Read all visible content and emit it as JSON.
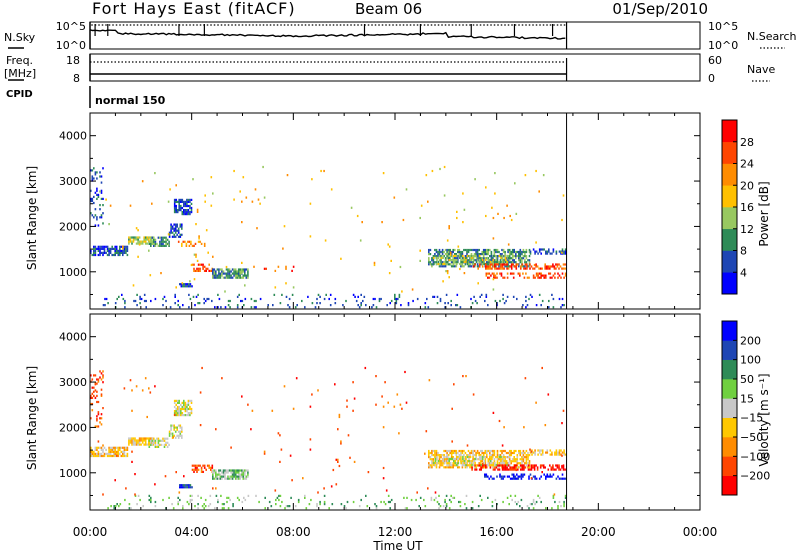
{
  "header": {
    "site": "Fort Hays East (fitACF)",
    "beam": "Beam 06",
    "date": "01/Sep/2010"
  },
  "noise_panel": {
    "left_label": "N.Sky",
    "left_ticks": [
      "10^5",
      "10^0"
    ],
    "right_label": "N.Search",
    "right_ticks": [
      "10^5",
      "10^0"
    ]
  },
  "freq_panel": {
    "left_label_line1": "Freq.",
    "left_label_line2": "[MHz]",
    "left_ticks": [
      "18",
      "8"
    ],
    "right_label": "Nave",
    "right_ticks": [
      "60",
      "0"
    ]
  },
  "cpid_panel": {
    "label": "CPID",
    "mode": "normal 150"
  },
  "time_axis": {
    "label": "Time UT",
    "ticks": [
      "00:00",
      "04:00",
      "08:00",
      "12:00",
      "16:00",
      "20:00",
      "00:00"
    ],
    "data_end_hour": 18.75
  },
  "colors": {
    "power_scale": [
      "#0000ff",
      "#1e46b4",
      "#2e8b57",
      "#98c860",
      "#ffc000",
      "#ff8c00",
      "#ff4500",
      "#ff0000"
    ],
    "velocity_scale": [
      "#ff0000",
      "#ff4500",
      "#ff8c00",
      "#ffc800",
      "#c8c8c8",
      "#70d040",
      "#2e8b57",
      "#1e46b4",
      "#0000ff"
    ]
  },
  "chart_data": [
    {
      "type": "heatmap",
      "name": "power",
      "ylabel": "Slant Range [km]",
      "xlabel": "",
      "ylim": [
        180,
        4500
      ],
      "yticks": [
        "1000",
        "2000",
        "3000",
        "4000"
      ],
      "ytick_values": [
        1000,
        2000,
        3000,
        4000
      ],
      "colorbar": {
        "label": "Power [dB]",
        "range": [
          0,
          32
        ],
        "ticks": [
          "4",
          "8",
          "12",
          "16",
          "20",
          "24",
          "28"
        ]
      },
      "regions": [
        {
          "t0": 0.0,
          "t1": 0.5,
          "r0": 2000,
          "r1": 3300,
          "level": 1,
          "density": 0.25
        },
        {
          "t0": 0.0,
          "t1": 1.5,
          "r0": 1350,
          "r1": 1550,
          "level": 1,
          "density": 0.7
        },
        {
          "t0": 1.5,
          "t1": 2.5,
          "r0": 1600,
          "r1": 1750,
          "level": 3,
          "density": 0.8
        },
        {
          "t0": 2.3,
          "t1": 3.1,
          "r0": 1550,
          "r1": 1750,
          "level": 2,
          "density": 0.6
        },
        {
          "t0": 3.1,
          "t1": 3.6,
          "r0": 1750,
          "r1": 2050,
          "level": 1,
          "density": 0.5
        },
        {
          "t0": 3.3,
          "t1": 4.0,
          "r0": 2250,
          "r1": 2600,
          "level": 1,
          "density": 0.7
        },
        {
          "t0": 3.4,
          "t1": 4.6,
          "r0": 1550,
          "r1": 1650,
          "level": 5,
          "density": 0.3
        },
        {
          "t0": 3.5,
          "t1": 4.0,
          "r0": 660,
          "r1": 720,
          "level": 1,
          "density": 0.9
        },
        {
          "t0": 4.0,
          "t1": 4.8,
          "r0": 1000,
          "r1": 1150,
          "level": 6,
          "density": 0.5
        },
        {
          "t0": 4.8,
          "t1": 6.2,
          "r0": 850,
          "r1": 1050,
          "level": 2,
          "density": 0.8
        },
        {
          "t0": 6.0,
          "t1": 8.0,
          "r0": 1000,
          "r1": 1100,
          "level": 6,
          "density": 0.12
        },
        {
          "t0": 0.5,
          "t1": 18.7,
          "r0": 200,
          "r1": 500,
          "level": 1,
          "density": 0.1
        },
        {
          "t0": 13.3,
          "t1": 17.3,
          "r0": 1100,
          "r1": 1500,
          "level": 2,
          "density": 0.65
        },
        {
          "t0": 13.5,
          "t1": 16.5,
          "r0": 1150,
          "r1": 1350,
          "level": 3,
          "density": 0.4
        },
        {
          "t0": 15.0,
          "t1": 18.7,
          "r0": 1050,
          "r1": 1150,
          "level": 6,
          "density": 0.45
        },
        {
          "t0": 15.5,
          "t1": 18.7,
          "r0": 850,
          "r1": 950,
          "level": 6,
          "density": 0.4
        },
        {
          "t0": 17.3,
          "t1": 18.7,
          "r0": 1380,
          "r1": 1480,
          "level": 1,
          "density": 0.6
        },
        {
          "t0": 0.0,
          "t1": 18.7,
          "r0": 500,
          "r1": 3300,
          "level": 4,
          "density": 0.008
        }
      ]
    },
    {
      "type": "heatmap",
      "name": "velocity",
      "ylabel": "Slant Range [km]",
      "xlabel": "Time UT",
      "ylim": [
        180,
        4500
      ],
      "yticks": [
        "1000",
        "2000",
        "3000",
        "4000"
      ],
      "ytick_values": [
        1000,
        2000,
        3000,
        4000
      ],
      "colorbar": {
        "label": "Velocity [m s⁻¹]",
        "ticks": [
          "200",
          "100",
          "50",
          "15",
          "−15",
          "−50",
          "−100",
          "−200"
        ]
      },
      "regions": [
        {
          "t0": 0.0,
          "t1": 0.5,
          "r0": 2000,
          "r1": 3300,
          "level": 1,
          "density": 0.2
        },
        {
          "t0": 0.0,
          "t1": 1.5,
          "r0": 1350,
          "r1": 1550,
          "level": 3,
          "density": 0.7
        },
        {
          "t0": 1.5,
          "t1": 2.5,
          "r0": 1600,
          "r1": 1750,
          "level": 3,
          "density": 0.8
        },
        {
          "t0": 2.3,
          "t1": 3.1,
          "r0": 1550,
          "r1": 1750,
          "level": 4,
          "density": 0.6
        },
        {
          "t0": 3.1,
          "t1": 3.6,
          "r0": 1750,
          "r1": 2050,
          "level": 4,
          "density": 0.5
        },
        {
          "t0": 3.3,
          "t1": 4.0,
          "r0": 2250,
          "r1": 2600,
          "level": 4,
          "density": 0.7
        },
        {
          "t0": 3.5,
          "t1": 4.0,
          "r0": 660,
          "r1": 720,
          "level": 7,
          "density": 0.9
        },
        {
          "t0": 4.0,
          "t1": 4.8,
          "r0": 1000,
          "r1": 1150,
          "level": 1,
          "density": 0.5
        },
        {
          "t0": 4.8,
          "t1": 6.2,
          "r0": 850,
          "r1": 1050,
          "level": 5,
          "density": 0.8
        },
        {
          "t0": 0.5,
          "t1": 18.7,
          "r0": 200,
          "r1": 500,
          "level": 5,
          "density": 0.1
        },
        {
          "t0": 13.3,
          "t1": 17.3,
          "r0": 1100,
          "r1": 1500,
          "level": 3,
          "density": 0.65
        },
        {
          "t0": 13.5,
          "t1": 16.5,
          "r0": 1150,
          "r1": 1350,
          "level": 4,
          "density": 0.4
        },
        {
          "t0": 15.0,
          "t1": 18.7,
          "r0": 1050,
          "r1": 1150,
          "level": 0,
          "density": 0.45
        },
        {
          "t0": 15.5,
          "t1": 18.7,
          "r0": 850,
          "r1": 950,
          "level": 8,
          "density": 0.4
        },
        {
          "t0": 17.3,
          "t1": 18.7,
          "r0": 1380,
          "r1": 1480,
          "level": 3,
          "density": 0.6
        },
        {
          "t0": 0.0,
          "t1": 18.7,
          "r0": 500,
          "r1": 3300,
          "level": 1,
          "density": 0.008
        }
      ]
    }
  ]
}
